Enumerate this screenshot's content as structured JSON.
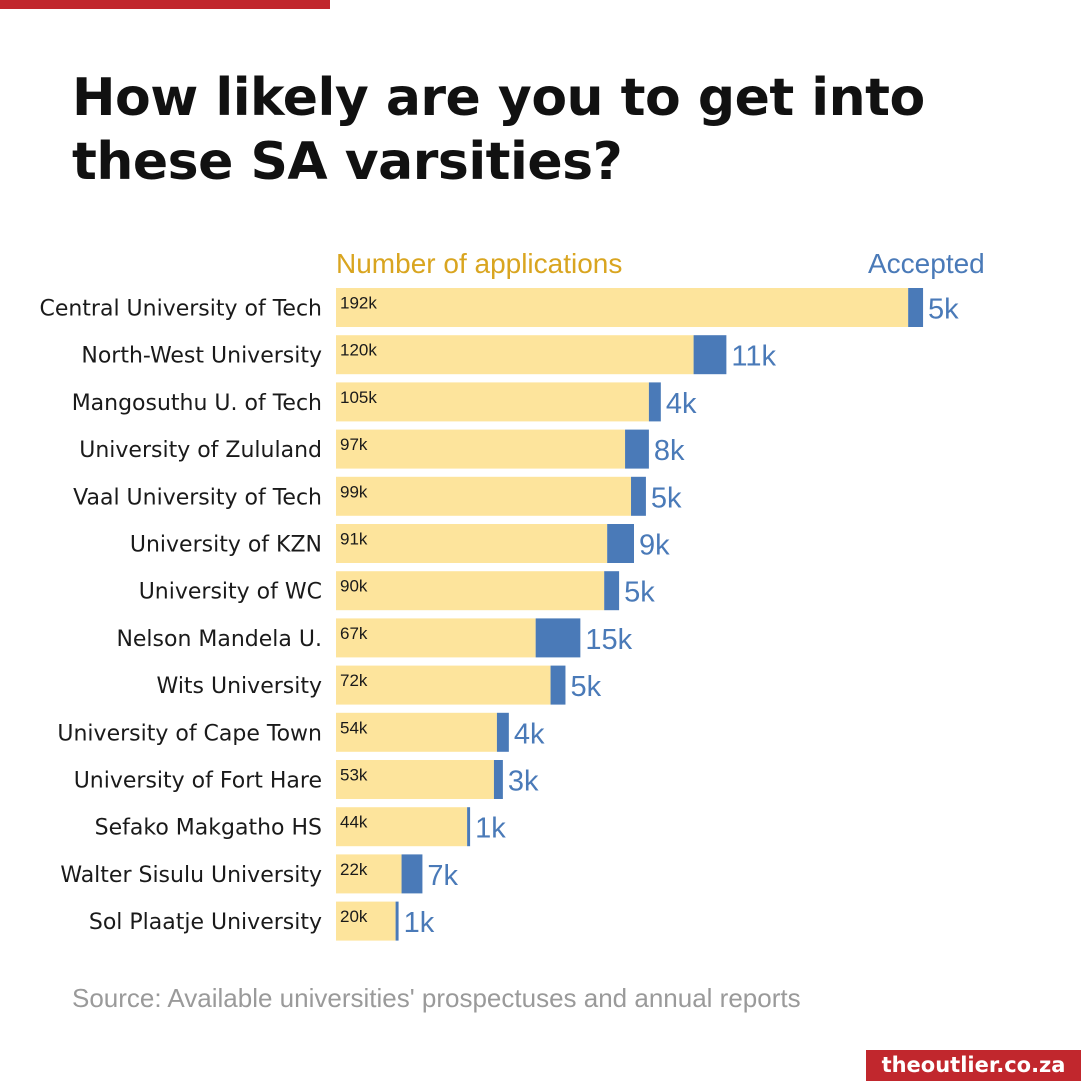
{
  "title": {
    "line1": "How likely are you to get into",
    "line2": "these SA varsities?"
  },
  "colors": {
    "applications": "#fde49c",
    "accepted": "#4a7ab8",
    "legend_applications": "#d9a520",
    "brand": "#c1272d"
  },
  "chart_data": {
    "type": "bar",
    "orientation": "horizontal",
    "stacked": true,
    "series": [
      {
        "name": "Number of applications",
        "values": [
          192,
          120,
          105,
          97,
          99,
          91,
          90,
          67,
          72,
          54,
          53,
          44,
          22,
          20
        ],
        "labels": [
          "192k",
          "120k",
          "105k",
          "97k",
          "99k",
          "91k",
          "90k",
          "67k",
          "72k",
          "54k",
          "53k",
          "44k",
          "22k",
          "20k"
        ]
      },
      {
        "name": "Accepted",
        "values": [
          5,
          11,
          4,
          8,
          5,
          9,
          5,
          15,
          5,
          4,
          3,
          1,
          7,
          1
        ],
        "labels": [
          "5k",
          "11k",
          "4k",
          "8k",
          "5k",
          "9k",
          "5k",
          "15k",
          "5k",
          "4k",
          "3k",
          "1k",
          "7k",
          "1k"
        ]
      }
    ],
    "categories": [
      "Central University of Tech",
      "North-West University",
      "Mangosuthu U. of Tech",
      "University of Zululand",
      "Vaal University of Tech",
      "University of KZN",
      "University of WC",
      "Nelson Mandela U.",
      "Wits University",
      "University of Cape Town",
      "University of Fort Hare",
      "Sefako Makgatho HS",
      "Walter Sisulu University",
      "Sol Plaatje University"
    ],
    "unit": "thousands"
  },
  "legend": {
    "applications_label": "Number of applications",
    "accepted_label": "Accepted"
  },
  "source": "Source: Available universities' prospectuses and annual reports",
  "brand": "theoutlier.co.za"
}
